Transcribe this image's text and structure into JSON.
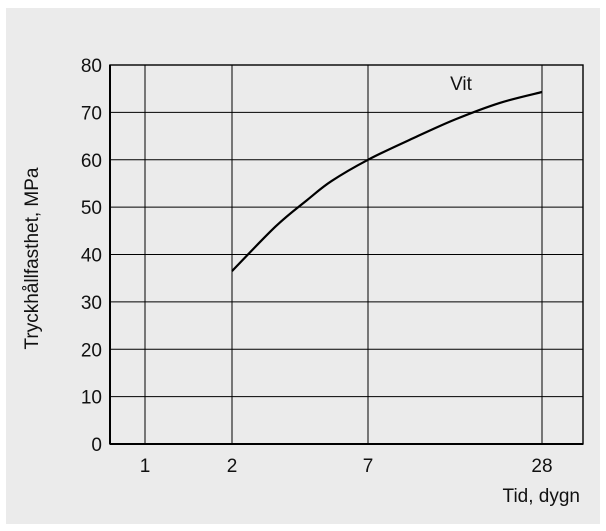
{
  "chart_data": {
    "type": "line",
    "title": "",
    "xlabel": "Tid, dygn",
    "ylabel": "Tryckhållfasthet, MPa",
    "x_scale": "categorical-log",
    "x_ticks": [
      "1",
      "2",
      "7",
      "28"
    ],
    "x_tick_values": [
      1,
      2,
      7,
      28
    ],
    "y_ticks": [
      "0",
      "10",
      "20",
      "30",
      "40",
      "50",
      "60",
      "70",
      "80"
    ],
    "ylim": [
      0,
      80
    ],
    "grid": true,
    "series": [
      {
        "name": "Vit",
        "color": "#000000",
        "x": [
          2,
          3,
          4,
          5,
          7,
          10,
          14,
          20,
          28
        ],
        "y": [
          36.5,
          46,
          51.5,
          55.5,
          60,
          64.5,
          68.5,
          72,
          74.3
        ]
      }
    ]
  }
}
